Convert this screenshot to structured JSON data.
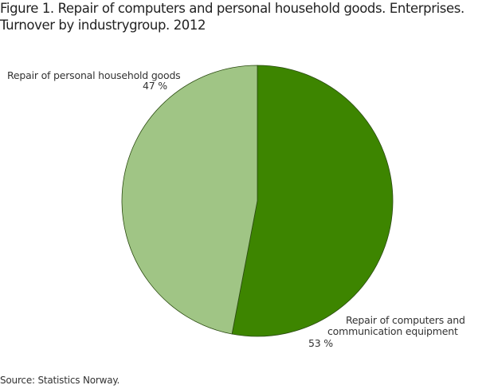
{
  "title": {
    "line1": "Figure 1. Repair of computers and personal household goods. Enterprises.",
    "line2": "Turnover by industrygroup. 2012"
  },
  "labels": {
    "household": {
      "name": "Repair of personal household goods",
      "pct": "47 %"
    },
    "computers": {
      "name_line1": "Repair of computers and",
      "name_line2": "communication equipment",
      "pct": "53 %"
    }
  },
  "source": "Source: Statistics Norway.",
  "colors": {
    "computers": "#3d8500",
    "household": "#a0c585",
    "stroke": "#2a4a10"
  },
  "chart_data": {
    "type": "pie",
    "title": "Figure 1. Repair of computers and personal household goods. Enterprises. Turnover by industrygroup. 2012",
    "categories": [
      "Repair of computers and communication equipment",
      "Repair of personal household goods"
    ],
    "values": [
      53,
      47
    ],
    "unit": "%",
    "start_angle_deg": 0,
    "direction": "clockwise",
    "legend": "none (direct labels)",
    "source": "Source: Statistics Norway."
  }
}
